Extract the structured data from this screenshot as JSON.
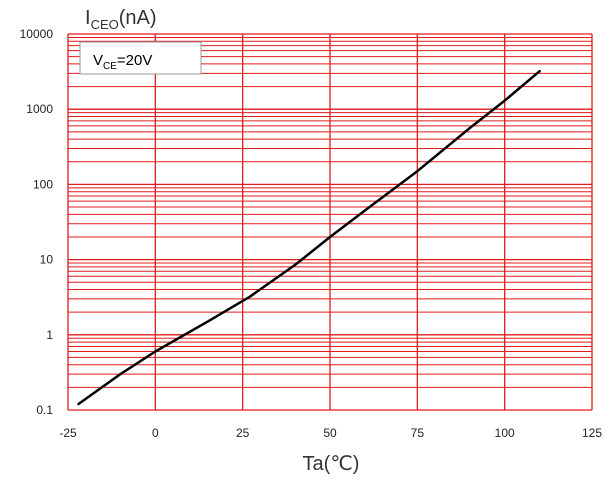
{
  "chart_data": {
    "type": "line",
    "title": "",
    "ylabel": {
      "main": "I",
      "sub": "CEO",
      "unit": "(nA)"
    },
    "xlabel": "Ta(℃)",
    "xlim": [
      -25,
      125
    ],
    "ylim": [
      0.1,
      10000
    ],
    "yscale": "log",
    "grid": true,
    "grid_color": "#e31b1b",
    "line_color": "#000000",
    "x_ticks": [
      "-25",
      "0",
      "25",
      "50",
      "75",
      "100",
      "125"
    ],
    "y_ticks": [
      "0.1",
      "1",
      "10",
      "100",
      "1000",
      "10000"
    ],
    "annotation": {
      "main": "V",
      "sub": "CE",
      "rest": "=20V"
    },
    "series": [
      {
        "x": [
          -22,
          -10,
          0,
          15,
          27,
          40,
          50,
          60,
          75,
          90,
          100,
          110
        ],
        "y": [
          0.12,
          0.3,
          0.6,
          1.5,
          3.2,
          8.5,
          20,
          45,
          150,
          560,
          1300,
          3200
        ]
      }
    ]
  }
}
